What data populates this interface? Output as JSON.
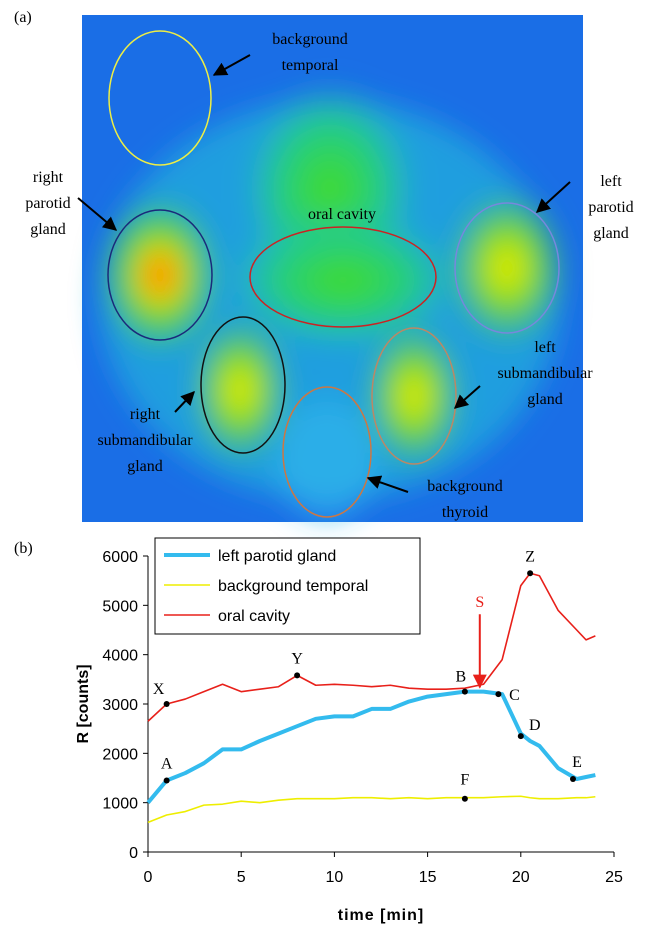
{
  "panels": [
    "(a)",
    "(b)"
  ],
  "image": {
    "regions": [
      {
        "lines": [
          "background",
          "temporal"
        ]
      },
      {
        "lines": [
          "right",
          "parotid",
          "gland"
        ]
      },
      {
        "lines": [
          "oral cavity"
        ]
      },
      {
        "lines": [
          "left",
          "parotid",
          "gland"
        ]
      },
      {
        "lines": [
          "left",
          "submandibular",
          "gland"
        ]
      },
      {
        "lines": [
          "right",
          "submandibular",
          "gland"
        ]
      },
      {
        "lines": [
          "background",
          "thyroid"
        ]
      }
    ]
  },
  "chart_data": {
    "type": "line",
    "x_label": "time [min]",
    "y_label": "R [counts]",
    "x": [
      0,
      1,
      2,
      3,
      4,
      5,
      6,
      7,
      8,
      9,
      10,
      11,
      12,
      13,
      14,
      15,
      16,
      17,
      18,
      19,
      20,
      20.5,
      21,
      22,
      23,
      23.5,
      24
    ],
    "series": [
      {
        "name": "left parotid gland",
        "color": "#33bbee",
        "values": [
          1000,
          1450,
          1600,
          1800,
          2080,
          2080,
          2250,
          2400,
          2550,
          2700,
          2750,
          2750,
          2900,
          2900,
          3050,
          3150,
          3200,
          3250,
          3250,
          3200,
          2400,
          2250,
          2150,
          1700,
          1480,
          1520,
          1560
        ]
      },
      {
        "name": "background temporal",
        "color": "#eeee00",
        "values": [
          600,
          750,
          820,
          950,
          970,
          1030,
          1000,
          1050,
          1080,
          1080,
          1080,
          1100,
          1100,
          1080,
          1100,
          1080,
          1100,
          1100,
          1100,
          1120,
          1130,
          1100,
          1080,
          1080,
          1100,
          1100,
          1120
        ]
      },
      {
        "name": "oral cavity",
        "color": "#e8201a",
        "values": [
          2650,
          3000,
          3100,
          3250,
          3400,
          3250,
          3300,
          3350,
          3580,
          3380,
          3400,
          3380,
          3350,
          3380,
          3320,
          3300,
          3300,
          3320,
          3400,
          3900,
          5400,
          5650,
          5600,
          4900,
          4500,
          4300,
          4380
        ]
      }
    ],
    "annotations": [
      {
        "label": "X",
        "x": 1,
        "y": 3000
      },
      {
        "label": "Y",
        "x": 8,
        "y": 3580
      },
      {
        "label": "Z",
        "x": 20.5,
        "y": 5650
      },
      {
        "label": "A",
        "x": 1,
        "y": 1450
      },
      {
        "label": "B",
        "x": 17,
        "y": 3250
      },
      {
        "label": "C",
        "x": 18.8,
        "y": 3200
      },
      {
        "label": "D",
        "x": 20,
        "y": 2350
      },
      {
        "label": "E",
        "x": 22.8,
        "y": 1480
      },
      {
        "label": "F",
        "x": 17,
        "y": 1080
      }
    ],
    "marker": {
      "label": "S",
      "x": 17.8,
      "y": 3300,
      "color": "#e8201a"
    },
    "xlim": [
      0,
      25
    ],
    "xticks": [
      0,
      5,
      10,
      15,
      20,
      25
    ],
    "ylim": [
      0,
      6000
    ],
    "yticks": [
      0,
      1000,
      2000,
      3000,
      4000,
      5000,
      6000
    ],
    "grid": false,
    "legend": "upper left"
  }
}
